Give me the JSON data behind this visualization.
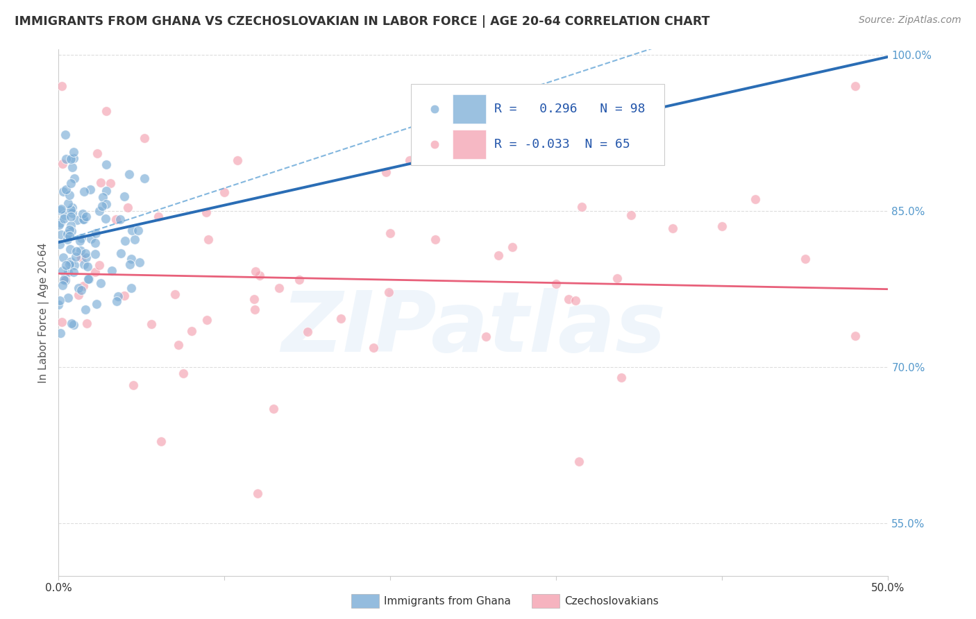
{
  "title": "IMMIGRANTS FROM GHANA VS CZECHOSLOVAKIAN IN LABOR FORCE | AGE 20-64 CORRELATION CHART",
  "source": "Source: ZipAtlas.com",
  "ylabel": "In Labor Force | Age 20-64",
  "x_min": 0.0,
  "x_max": 0.5,
  "y_min": 0.5,
  "y_max": 1.005,
  "y_ticks": [
    0.55,
    0.7,
    0.85,
    1.0
  ],
  "y_tick_labels": [
    "55.0%",
    "70.0%",
    "85.0%",
    "100.0%"
  ],
  "ghana_color": "#7aacd6",
  "czech_color": "#f4a0b0",
  "ghana_line_color": "#2a6db5",
  "ghana_dash_color": "#5a9fd4",
  "czech_line_color": "#e8607a",
  "ghana_R": 0.296,
  "ghana_N": 98,
  "czech_R": -0.033,
  "czech_N": 65,
  "ghana_line_intercept": 0.82,
  "ghana_line_slope": 0.356,
  "ghana_dash_intercept": 0.82,
  "ghana_dash_slope": 0.52,
  "czech_line_intercept": 0.79,
  "czech_line_slope": -0.03,
  "watermark": "ZIPatlas",
  "legend_ghana_label": "Immigrants from Ghana",
  "legend_czech_label": "Czechoslovakians",
  "bg_color": "#ffffff",
  "grid_color": "#dddddd",
  "title_color": "#333333",
  "right_tick_color": "#5599cc",
  "legend_text_color": "#2255aa"
}
